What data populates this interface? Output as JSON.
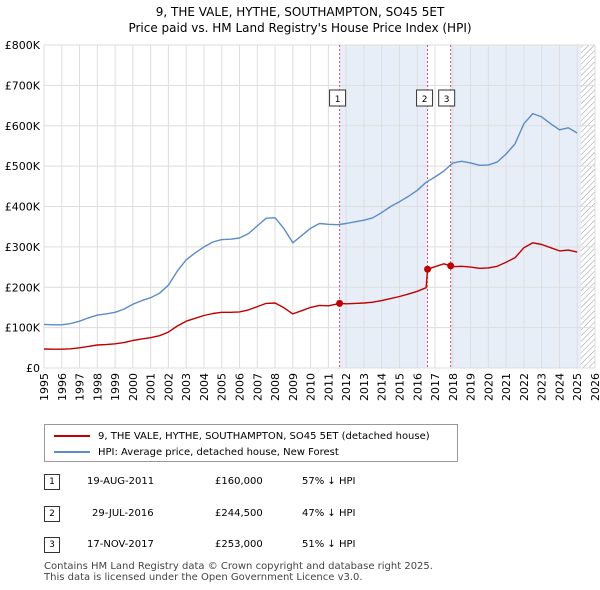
{
  "title": {
    "line1": "9, THE VALE, HYTHE, SOUTHAMPTON, SO45 5ET",
    "line2": "Price paid vs. HM Land Registry's House Price Index (HPI)"
  },
  "colors": {
    "hpi": "#5b8cc8",
    "price": "#c00000",
    "shade": "#e8eef8",
    "grid": "#dddddd",
    "vline": "#d24b6e"
  },
  "legend": {
    "price_label": "9, THE VALE, HYTHE, SOUTHAMPTON, SO45 5ET (detached house)",
    "hpi_label": "HPI: Average price, detached house, New Forest"
  },
  "sales": [
    {
      "num": "1",
      "date": "19-AUG-2011",
      "price": "£160,000",
      "hpi_diff": "57% ↓ HPI"
    },
    {
      "num": "2",
      "date": "29-JUL-2016",
      "price": "£244,500",
      "hpi_diff": "47% ↓ HPI"
    },
    {
      "num": "3",
      "date": "17-NOV-2017",
      "price": "£253,000",
      "hpi_diff": "51% ↓ HPI"
    }
  ],
  "footer": {
    "line1": "Contains HM Land Registry data © Crown copyright and database right 2025.",
    "line2": "This data is licensed under the Open Government Licence v3.0."
  },
  "chart_data": {
    "type": "line",
    "title": "Price paid vs. HM Land Registry's House Price Index (HPI)",
    "xlim": [
      1995,
      2026
    ],
    "ylim": [
      0,
      800000
    ],
    "x_ticks": [
      1995,
      1996,
      1997,
      1998,
      1999,
      2000,
      2001,
      2002,
      2003,
      2004,
      2005,
      2006,
      2007,
      2008,
      2009,
      2010,
      2011,
      2012,
      2013,
      2014,
      2015,
      2016,
      2017,
      2018,
      2019,
      2020,
      2021,
      2022,
      2023,
      2024,
      2025,
      2026
    ],
    "y_ticks": [
      {
        "value": 0,
        "label": "£0"
      },
      {
        "value": 100000,
        "label": "£100K"
      },
      {
        "value": 200000,
        "label": "£200K"
      },
      {
        "value": 300000,
        "label": "£300K"
      },
      {
        "value": 400000,
        "label": "£400K"
      },
      {
        "value": 500000,
        "label": "£500K"
      },
      {
        "value": 600000,
        "label": "£600K"
      },
      {
        "value": 700000,
        "label": "£700K"
      },
      {
        "value": 800000,
        "label": "£800K"
      }
    ],
    "shaded_ranges": [
      [
        2011.63,
        2016.58
      ],
      [
        2017.88,
        2025.2
      ]
    ],
    "hatched_from": 2025.2,
    "sale_markers": [
      {
        "label": "1",
        "x": 2011.63,
        "y": 160000
      },
      {
        "label": "2",
        "x": 2016.58,
        "y": 244500
      },
      {
        "label": "3",
        "x": 2017.88,
        "y": 253000
      }
    ],
    "series": [
      {
        "name": "HPI: Average price, detached house, New Forest",
        "points": [
          [
            1995.0,
            108000
          ],
          [
            1995.5,
            107000
          ],
          [
            1996.0,
            107000
          ],
          [
            1996.5,
            110000
          ],
          [
            1997.0,
            116000
          ],
          [
            1997.5,
            124000
          ],
          [
            1998.0,
            131000
          ],
          [
            1998.5,
            134000
          ],
          [
            1999.0,
            138000
          ],
          [
            1999.5,
            146000
          ],
          [
            2000.0,
            158000
          ],
          [
            2000.5,
            167000
          ],
          [
            2001.0,
            174000
          ],
          [
            2001.5,
            185000
          ],
          [
            2002.0,
            205000
          ],
          [
            2002.5,
            240000
          ],
          [
            2003.0,
            268000
          ],
          [
            2003.5,
            285000
          ],
          [
            2004.0,
            300000
          ],
          [
            2004.5,
            312000
          ],
          [
            2005.0,
            318000
          ],
          [
            2005.5,
            319000
          ],
          [
            2006.0,
            322000
          ],
          [
            2006.5,
            333000
          ],
          [
            2007.0,
            352000
          ],
          [
            2007.5,
            371000
          ],
          [
            2008.0,
            372000
          ],
          [
            2008.5,
            345000
          ],
          [
            2009.0,
            310000
          ],
          [
            2009.5,
            328000
          ],
          [
            2010.0,
            346000
          ],
          [
            2010.5,
            358000
          ],
          [
            2011.0,
            356000
          ],
          [
            2011.5,
            355000
          ],
          [
            2012.0,
            358000
          ],
          [
            2012.5,
            362000
          ],
          [
            2013.0,
            366000
          ],
          [
            2013.5,
            372000
          ],
          [
            2014.0,
            385000
          ],
          [
            2014.5,
            400000
          ],
          [
            2015.0,
            412000
          ],
          [
            2015.5,
            425000
          ],
          [
            2016.0,
            440000
          ],
          [
            2016.5,
            460000
          ],
          [
            2017.0,
            473000
          ],
          [
            2017.5,
            488000
          ],
          [
            2018.0,
            508000
          ],
          [
            2018.5,
            512000
          ],
          [
            2019.0,
            508000
          ],
          [
            2019.5,
            502000
          ],
          [
            2020.0,
            503000
          ],
          [
            2020.5,
            510000
          ],
          [
            2021.0,
            530000
          ],
          [
            2021.5,
            555000
          ],
          [
            2022.0,
            605000
          ],
          [
            2022.5,
            630000
          ],
          [
            2023.0,
            622000
          ],
          [
            2023.5,
            605000
          ],
          [
            2024.0,
            590000
          ],
          [
            2024.5,
            595000
          ],
          [
            2025.0,
            582000
          ]
        ]
      },
      {
        "name": "9, THE VALE, HYTHE, SOUTHAMPTON, SO45 5ET (detached house)",
        "points": [
          [
            1995.0,
            47000
          ],
          [
            1995.5,
            46500
          ],
          [
            1996.0,
            46500
          ],
          [
            1996.5,
            47500
          ],
          [
            1997.0,
            50000
          ],
          [
            1997.5,
            53500
          ],
          [
            1998.0,
            57000
          ],
          [
            1998.5,
            58000
          ],
          [
            1999.0,
            60000
          ],
          [
            1999.5,
            63000
          ],
          [
            2000.0,
            68000
          ],
          [
            2000.5,
            72000
          ],
          [
            2001.0,
            75000
          ],
          [
            2001.5,
            80000
          ],
          [
            2002.0,
            89000
          ],
          [
            2002.5,
            104000
          ],
          [
            2003.0,
            116000
          ],
          [
            2003.5,
            123000
          ],
          [
            2004.0,
            130000
          ],
          [
            2004.5,
            135000
          ],
          [
            2005.0,
            138000
          ],
          [
            2005.5,
            138000
          ],
          [
            2006.0,
            139000
          ],
          [
            2006.5,
            144000
          ],
          [
            2007.0,
            152000
          ],
          [
            2007.5,
            160000
          ],
          [
            2008.0,
            161000
          ],
          [
            2008.5,
            149000
          ],
          [
            2009.0,
            134000
          ],
          [
            2009.5,
            142000
          ],
          [
            2010.0,
            150000
          ],
          [
            2010.5,
            155000
          ],
          [
            2011.0,
            154000
          ],
          [
            2011.63,
            160000
          ],
          [
            2012.0,
            159000
          ],
          [
            2012.5,
            160000
          ],
          [
            2013.0,
            161000
          ],
          [
            2013.5,
            163000
          ],
          [
            2014.0,
            167000
          ],
          [
            2014.5,
            172000
          ],
          [
            2015.0,
            177000
          ],
          [
            2015.5,
            183000
          ],
          [
            2016.0,
            190000
          ],
          [
            2016.5,
            199000
          ],
          [
            2016.58,
            244500
          ],
          [
            2017.0,
            251000
          ],
          [
            2017.5,
            258000
          ],
          [
            2017.88,
            253000
          ],
          [
            2018.0,
            251000
          ],
          [
            2018.5,
            252000
          ],
          [
            2019.0,
            250000
          ],
          [
            2019.5,
            247000
          ],
          [
            2020.0,
            248000
          ],
          [
            2020.5,
            252000
          ],
          [
            2021.0,
            262000
          ],
          [
            2021.5,
            273000
          ],
          [
            2022.0,
            298000
          ],
          [
            2022.5,
            310000
          ],
          [
            2023.0,
            306000
          ],
          [
            2023.5,
            298000
          ],
          [
            2024.0,
            290000
          ],
          [
            2024.5,
            292000
          ],
          [
            2025.0,
            287000
          ]
        ]
      }
    ]
  }
}
